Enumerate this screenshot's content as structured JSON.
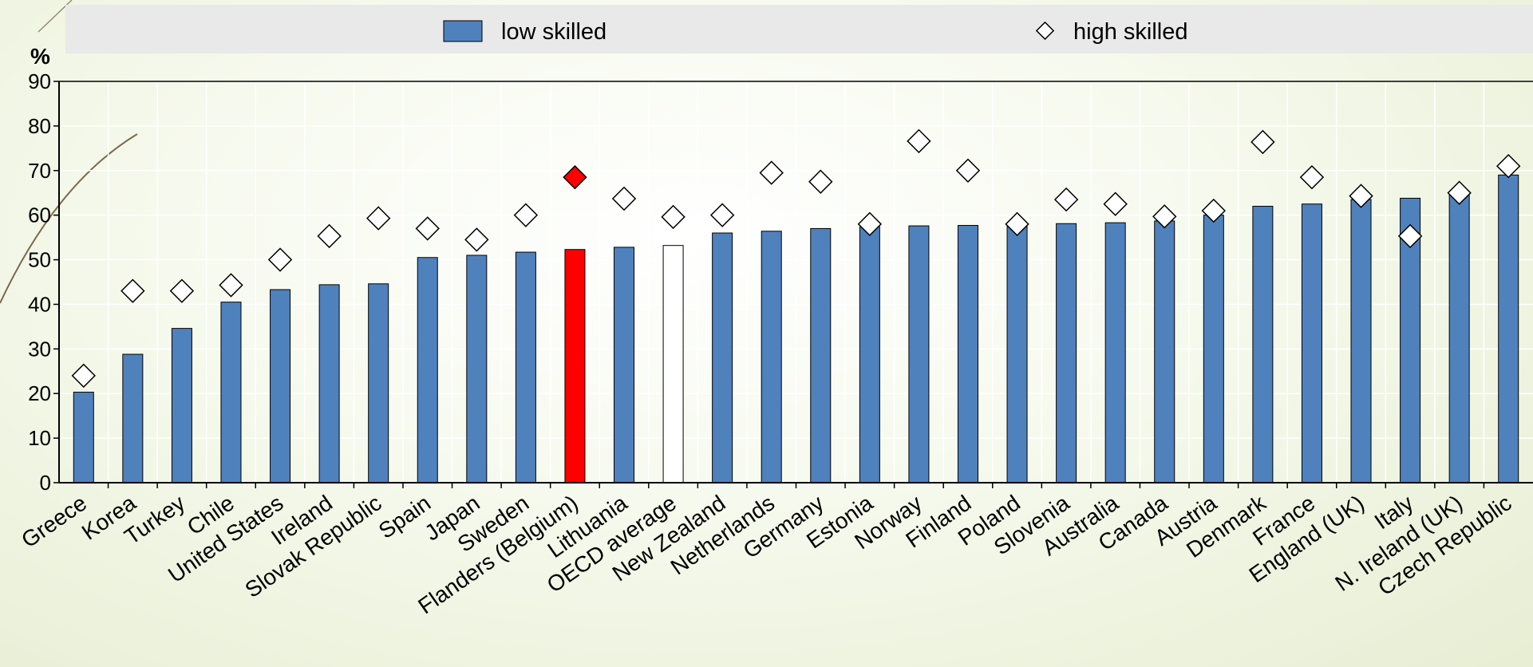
{
  "chart_data": {
    "type": "bar",
    "ylabel": "%",
    "ylim": [
      0,
      90
    ],
    "yticks": [
      0,
      10,
      20,
      30,
      40,
      50,
      60,
      70,
      80,
      90
    ],
    "grid": true,
    "legend_position": "top",
    "categories": [
      "Greece",
      "Korea",
      "Turkey",
      "Chile",
      "United States",
      "Ireland",
      "Slovak Republic",
      "Spain",
      "Japan",
      "Sweden",
      "Flanders (Belgium)",
      "Lithuania",
      "OECD average",
      "New Zealand",
      "Netherlands",
      "Germany",
      "Estonia",
      "Norway",
      "Finland",
      "Poland",
      "Slovenia",
      "Australia",
      "Canada",
      "Austria",
      "Denmark",
      "France",
      "England (UK)",
      "Italy",
      "N. Ireland (UK)",
      "Czech Republic"
    ],
    "series": [
      {
        "name": "low skilled",
        "type": "bar",
        "values": [
          20.3,
          28.8,
          34.6,
          40.5,
          43.3,
          44.4,
          44.6,
          50.5,
          51.0,
          51.7,
          52.3,
          52.8,
          53.2,
          56.0,
          56.4,
          57.0,
          57.4,
          57.6,
          57.7,
          57.9,
          58.1,
          58.3,
          58.7,
          60.0,
          62.0,
          62.5,
          63.5,
          63.8,
          64.5,
          69.0
        ]
      },
      {
        "name": "high skilled",
        "type": "scatter",
        "values": [
          24.0,
          43.0,
          43.0,
          44.3,
          50.0,
          55.3,
          59.3,
          57.0,
          54.5,
          60.0,
          68.5,
          63.7,
          59.6,
          60.0,
          69.5,
          67.5,
          58.0,
          76.6,
          70.0,
          58.0,
          63.5,
          62.5,
          59.7,
          61.0,
          76.4,
          68.5,
          64.3,
          55.3,
          65.0,
          71.0
        ]
      }
    ],
    "highlight_colors": {
      "default": "#4f81bd",
      "Flanders (Belgium)": "#ff0000",
      "OECD average": "#ffffff"
    }
  }
}
